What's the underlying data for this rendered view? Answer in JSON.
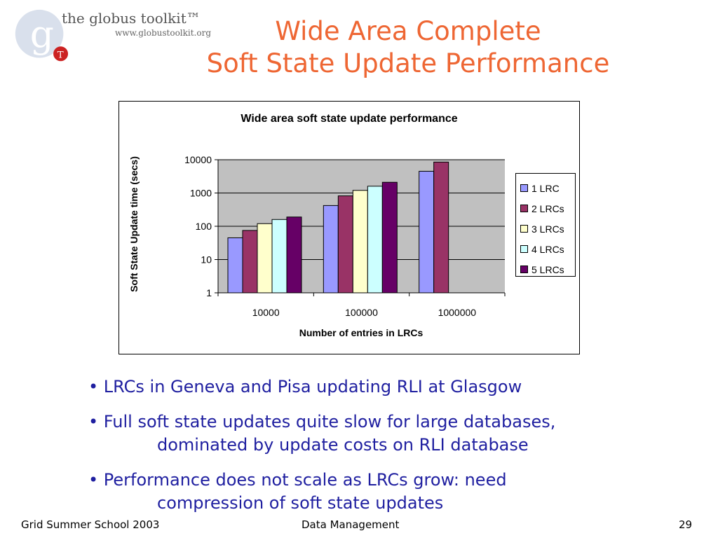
{
  "logo": {
    "name": "the globus toolkit™",
    "url": "www.globustoolkit.org",
    "letter": "g",
    "badge": "T"
  },
  "title": {
    "line1": "Wide Area Complete",
    "line2": "Soft State Update Performance"
  },
  "chart_data": {
    "type": "bar",
    "title": "Wide area soft state update performance",
    "xlabel": "Number of entries in LRCs",
    "ylabel": "Soft State Update time (secs)",
    "yscale": "log",
    "ylim": [
      1,
      10000
    ],
    "yticks": [
      "1",
      "10",
      "100",
      "1000",
      "10000"
    ],
    "categories": [
      "10000",
      "100000",
      "1000000"
    ],
    "grid": true,
    "legend_position": "right",
    "series": [
      {
        "name": "1 LRC",
        "color": "#9999ff",
        "values": [
          45,
          420,
          4500
        ]
      },
      {
        "name": "2 LRCs",
        "color": "#993366",
        "values": [
          75,
          820,
          8500
        ]
      },
      {
        "name": "3 LRCs",
        "color": "#ffffcc",
        "values": [
          120,
          1200,
          null
        ]
      },
      {
        "name": "4 LRCs",
        "color": "#ccffff",
        "values": [
          160,
          1600,
          null
        ]
      },
      {
        "name": "5 LRCs",
        "color": "#660066",
        "values": [
          190,
          2100,
          null
        ]
      }
    ]
  },
  "bullets": [
    {
      "lines": [
        "• LRCs in Geneva and Pisa updating RLI at Glasgow"
      ]
    },
    {
      "lines": [
        "• Full soft state updates quite slow for large databases,",
        "dominated by update costs on RLI database"
      ]
    },
    {
      "lines": [
        "• Performance does not scale as LRCs grow: need",
        "compression of soft state updates"
      ]
    }
  ],
  "footer": {
    "left": "Grid Summer School 2003",
    "center": "Data Management",
    "page": "29"
  },
  "colors": {
    "title": "#ee6633",
    "bullets": "#1f1fa0",
    "plot_bg": "#c0c0c0"
  }
}
